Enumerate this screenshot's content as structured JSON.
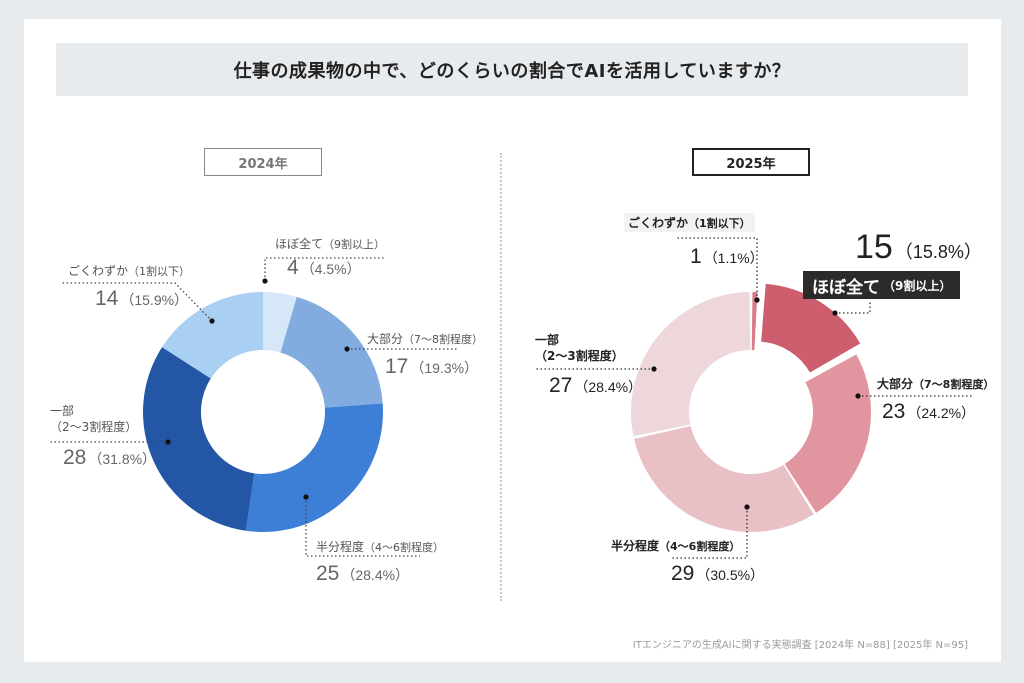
{
  "title": "仕事の成果物の中で、どのくらいの割合でAIを活用していますか？",
  "source": "ITエンジニアの生成AIに関する実態調査 [2024年 N=88] [2025年 N=95]",
  "chart_data": [
    {
      "type": "pie",
      "variant": "donut",
      "title": "2024年",
      "n": 88,
      "categories": [
        "ほぼ全て（9割以上）",
        "大部分（7〜8割程度）",
        "半分程度（4〜6割程度）",
        "一部（2〜3割程度）",
        "ごくわずか（1割以下）"
      ],
      "values": [
        4,
        17,
        25,
        28,
        14
      ],
      "percents": [
        "4.5%",
        "19.3%",
        "28.4%",
        "31.8%",
        "15.9%"
      ],
      "colors": [
        "#d6e8f8",
        "#82ace0",
        "#3d7fd6",
        "#2357a5",
        "#a9cff2"
      ],
      "labels": [
        {
          "name": "ほぼ全て",
          "range": "（9割以上）",
          "count": "4",
          "pct": "（4.5%）"
        },
        {
          "name": "大部分",
          "range": "（7〜8割程度）",
          "count": "17",
          "pct": "（19.3%）"
        },
        {
          "name": "半分程度",
          "range": "（4〜6割程度）",
          "count": "25",
          "pct": "（28.4%）"
        },
        {
          "name": "一部",
          "range": "（2〜3割程度）",
          "count": "28",
          "pct": "（31.8%）"
        },
        {
          "name": "ごくわずか",
          "range": "（1割以下）",
          "count": "14",
          "pct": "（15.9%）"
        }
      ]
    },
    {
      "type": "pie",
      "variant": "donut",
      "title": "2025年",
      "n": 95,
      "categories": [
        "ごくわずか（1割以下）",
        "ほぼ全て（9割以上）",
        "大部分（7〜8割程度）",
        "半分程度（4〜6割程度）",
        "一部（2〜3割程度）"
      ],
      "values": [
        1,
        15,
        23,
        29,
        27
      ],
      "percents": [
        "1.1%",
        "15.8%",
        "24.2%",
        "30.5%",
        "28.4%"
      ],
      "colors": [
        "#d97b89",
        "#cd5e6e",
        "#e0959f",
        "#e8c0c6",
        "#eed7da"
      ],
      "highlight": "ほぼ全て（9割以上）",
      "labels": [
        {
          "name": "ごくわずか",
          "range": "（1割以下）",
          "count": "1",
          "pct": "（1.1%）"
        },
        {
          "name": "ほぼ全て",
          "range": "（9割以上）",
          "count": "15",
          "pct": "（15.8%）"
        },
        {
          "name": "大部分",
          "range": "（7〜8割程度）",
          "count": "23",
          "pct": "（24.2%）"
        },
        {
          "name": "半分程度",
          "range": "（4〜6割程度）",
          "count": "29",
          "pct": "（30.5%）"
        },
        {
          "name": "一部",
          "range": "（2〜3割程度）",
          "count": "27",
          "pct": "（28.4%）"
        }
      ]
    }
  ]
}
